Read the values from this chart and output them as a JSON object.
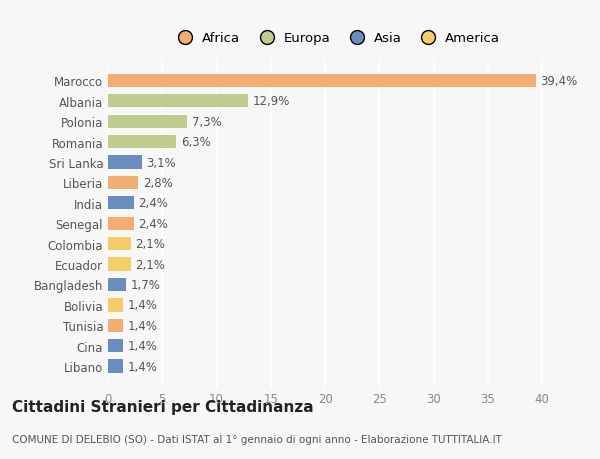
{
  "countries": [
    "Marocco",
    "Albania",
    "Polonia",
    "Romania",
    "Sri Lanka",
    "Liberia",
    "India",
    "Senegal",
    "Colombia",
    "Ecuador",
    "Bangladesh",
    "Bolivia",
    "Tunisia",
    "Cina",
    "Libano"
  ],
  "values": [
    39.4,
    12.9,
    7.3,
    6.3,
    3.1,
    2.8,
    2.4,
    2.4,
    2.1,
    2.1,
    1.7,
    1.4,
    1.4,
    1.4,
    1.4
  ],
  "labels": [
    "39,4%",
    "12,9%",
    "7,3%",
    "6,3%",
    "3,1%",
    "2,8%",
    "2,4%",
    "2,4%",
    "2,1%",
    "2,1%",
    "1,7%",
    "1,4%",
    "1,4%",
    "1,4%",
    "1,4%"
  ],
  "continents": [
    "Africa",
    "Europa",
    "Europa",
    "Europa",
    "Asia",
    "Africa",
    "Asia",
    "Africa",
    "America",
    "America",
    "Asia",
    "America",
    "Africa",
    "Asia",
    "Asia"
  ],
  "colors": {
    "Africa": "#F2AE72",
    "Europa": "#BFCC8F",
    "Asia": "#6B8CBE",
    "America": "#F5CC6A"
  },
  "legend_order": [
    "Africa",
    "Europa",
    "Asia",
    "America"
  ],
  "title": "Cittadini Stranieri per Cittadinanza",
  "subtitle": "COMUNE DI DELEBIO (SO) - Dati ISTAT al 1° gennaio di ogni anno - Elaborazione TUTTITALIA.IT",
  "xlim": [
    0,
    42
  ],
  "xticks": [
    0,
    5,
    10,
    15,
    20,
    25,
    30,
    35,
    40
  ],
  "background_color": "#f7f7f7",
  "plot_bg_color": "#f7f7f7",
  "bar_height": 0.65,
  "label_fontsize": 8.5,
  "ytick_fontsize": 8.5,
  "xtick_fontsize": 8.5,
  "legend_fontsize": 9.5,
  "title_fontsize": 11,
  "subtitle_fontsize": 7.5
}
